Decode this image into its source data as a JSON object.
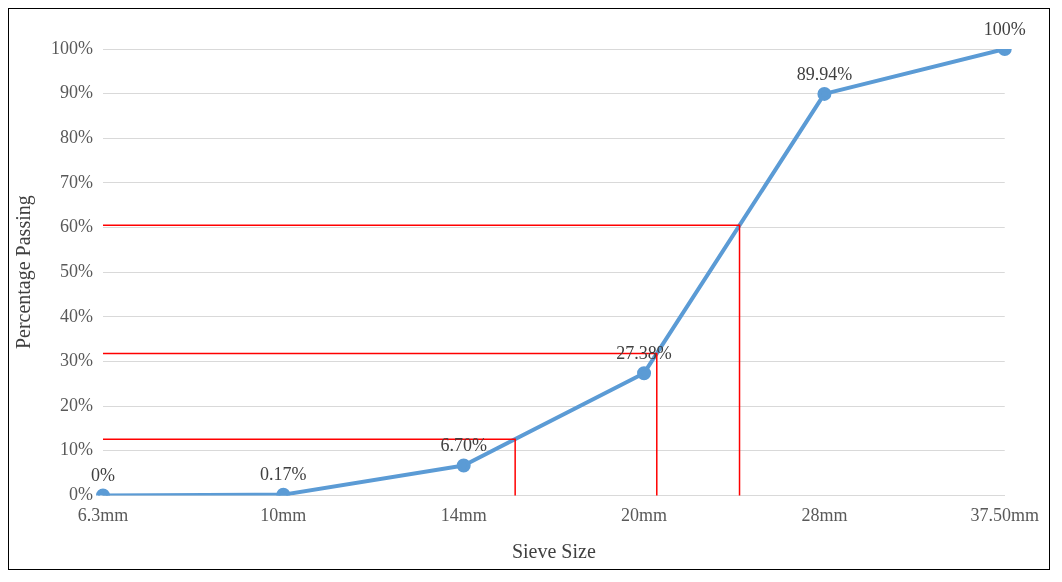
{
  "chart_data": {
    "type": "line",
    "xlabel": "Sieve Size",
    "ylabel": "Percentage Passing",
    "categories": [
      "6.3mm",
      "10mm",
      "14mm",
      "20mm",
      "28mm",
      "37.50mm"
    ],
    "series": [
      {
        "color": "#5b9bd5",
        "values": [
          0,
          0.17,
          6.7,
          27.38,
          89.94,
          100
        ],
        "value_labels": [
          "0%",
          "0.17%",
          "6.70%",
          "27.38%",
          "89.94%",
          "100%"
        ]
      }
    ],
    "ylim": [
      0,
      100
    ],
    "yticks": [
      {
        "value": 0,
        "label": "0%"
      },
      {
        "value": 10,
        "label": "10%"
      },
      {
        "value": 20,
        "label": "20%"
      },
      {
        "value": 30,
        "label": "30%"
      },
      {
        "value": 40,
        "label": "40%"
      },
      {
        "value": 50,
        "label": "50%"
      },
      {
        "value": 60,
        "label": "60%"
      },
      {
        "value": 70,
        "label": "70%"
      },
      {
        "value": 80,
        "label": "80%"
      },
      {
        "value": 90,
        "label": "90%"
      },
      {
        "value": 100,
        "label": "100%"
      }
    ],
    "ref_lines": [
      {
        "axis": "y",
        "value": 12.6,
        "color": "#ff0000"
      },
      {
        "axis": "y",
        "value": 31.8,
        "color": "#ff0000"
      },
      {
        "axis": "y",
        "value": 60.5,
        "color": "#ff0000"
      }
    ],
    "grid": "y",
    "marker": "circle",
    "line_style": "solid",
    "legend": false
  }
}
